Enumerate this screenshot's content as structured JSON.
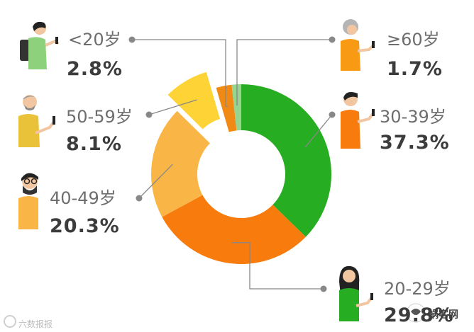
{
  "chart_data": {
    "type": "pie",
    "subtype": "donut",
    "categories": [
      "<20岁",
      "20-29岁",
      "30-39岁",
      "40-49岁",
      "50-59岁",
      "≥60岁"
    ],
    "values": [
      2.8,
      29.8,
      37.3,
      20.3,
      8.1,
      1.7
    ],
    "value_labels": [
      "2.8%",
      "29.8%",
      "37.3%",
      "20.3%",
      "8.1%",
      "1.7%"
    ],
    "colors": [
      "#f08a14",
      "#f77b0d",
      "#27ad21",
      "#f9b646",
      "#fdd336",
      "#95d590"
    ],
    "exploded": "50-59岁",
    "legend": "callouts around chart with person icons"
  },
  "icons": [
    "student-icon",
    "elderly-woman-icon",
    "bearded-man-icon",
    "young-man-icon",
    "hipster-man-icon",
    "young-woman-icon"
  ],
  "watermark": "六数报报",
  "brand": "蜗客网"
}
